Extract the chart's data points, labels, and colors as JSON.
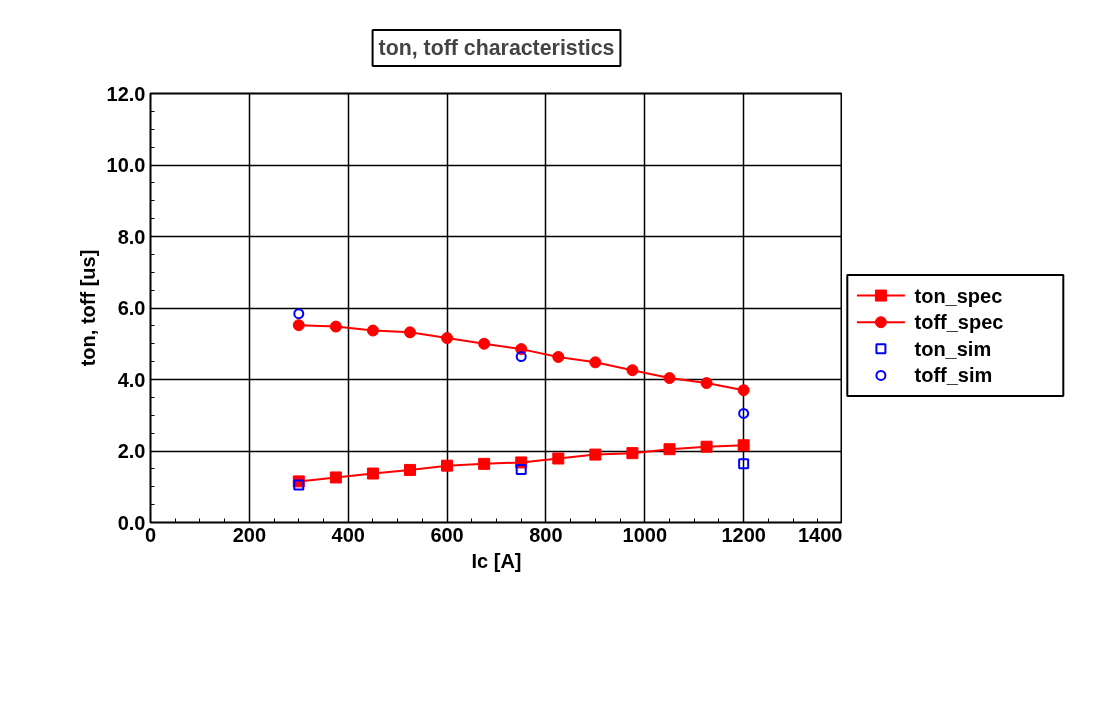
{
  "chart_data": {
    "type": "line",
    "title": "ton, toff characteristics",
    "xlabel": "Ic [A]",
    "ylabel": "ton, toff [us]",
    "xlim": [
      0,
      1400
    ],
    "xticks": [
      0,
      200,
      400,
      600,
      800,
      1000,
      1200,
      1400
    ],
    "ylim": [
      0,
      12
    ],
    "yticks": [
      {
        "value": 0,
        "label": "0.0"
      },
      {
        "value": 2,
        "label": "2.0"
      },
      {
        "value": 4,
        "label": "4.0"
      },
      {
        "value": 6,
        "label": "6.0"
      },
      {
        "value": 8,
        "label": "8.0"
      },
      {
        "value": 10,
        "label": "10.0"
      },
      {
        "value": 12,
        "label": "12.0"
      }
    ],
    "grid": true,
    "legend": "right",
    "series": [
      {
        "name": "ton_spec",
        "marker": "square",
        "color": "#ff0000",
        "x": [
          300,
          375,
          450,
          525,
          600,
          675,
          750,
          825,
          900,
          975,
          1050,
          1125,
          1200
        ],
        "values": [
          1.15,
          1.26,
          1.37,
          1.47,
          1.59,
          1.64,
          1.68,
          1.79,
          1.9,
          1.94,
          2.05,
          2.12,
          2.16
        ]
      },
      {
        "name": "toff_spec",
        "marker": "circle",
        "color": "#ff0000",
        "x": [
          300,
          375,
          450,
          525,
          600,
          675,
          750,
          825,
          900,
          975,
          1050,
          1125,
          1200
        ],
        "values": [
          5.52,
          5.48,
          5.37,
          5.32,
          5.16,
          5.0,
          4.85,
          4.63,
          4.48,
          4.26,
          4.04,
          3.9,
          3.7
        ]
      },
      {
        "name": "ton_sim",
        "type": "scatter",
        "marker": "square",
        "color": "#0000ff",
        "x": [
          300,
          750,
          1200
        ],
        "values": [
          1.05,
          1.48,
          1.64
        ]
      },
      {
        "name": "toff_sim",
        "type": "scatter",
        "marker": "circle",
        "color": "#0000ff",
        "x": [
          300,
          750,
          1200
        ],
        "values": [
          5.84,
          4.64,
          3.05
        ]
      }
    ]
  }
}
